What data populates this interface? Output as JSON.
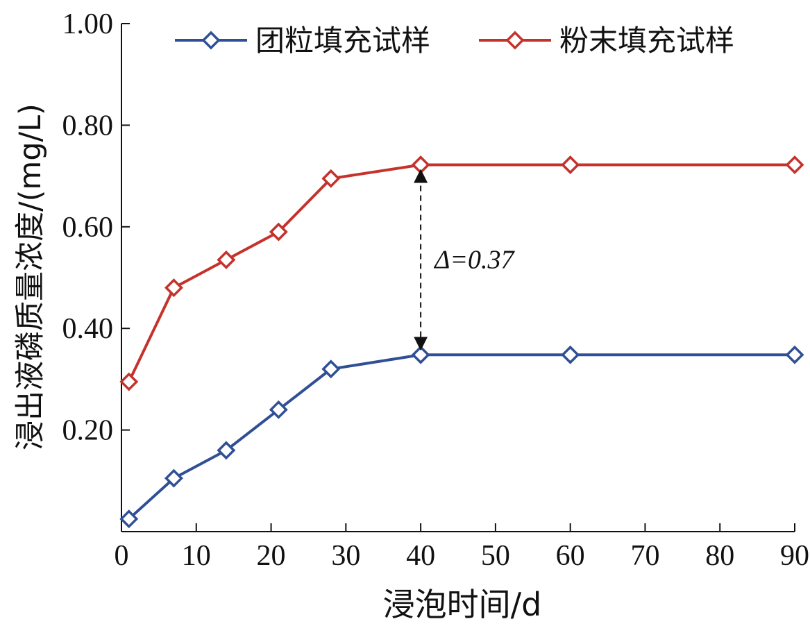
{
  "chart_data": {
    "type": "line",
    "xlabel": "浸泡时间/d",
    "ylabel": "浸出液磷质量浓度/(mg/L)",
    "x_ticks": [
      "0",
      "10",
      "20",
      "30",
      "40",
      "50",
      "60",
      "70",
      "80",
      "90"
    ],
    "y_ticks": [
      "0.20",
      "0.40",
      "0.60",
      "0.80",
      "1.00"
    ],
    "ylim": [
      0.0,
      1.0
    ],
    "x": [
      1,
      7,
      14,
      21,
      28,
      40,
      60,
      90
    ],
    "series": [
      {
        "name": "团粒填充试样",
        "color": "#2f4f96",
        "marker": "diamond-open",
        "values": [
          0.025,
          0.105,
          0.16,
          0.24,
          0.32,
          0.348,
          0.348,
          0.348
        ]
      },
      {
        "name": "粉末填充试样",
        "color": "#c5322b",
        "marker": "diamond-open",
        "values": [
          0.295,
          0.48,
          0.535,
          0.59,
          0.695,
          0.722,
          0.722,
          0.722
        ]
      }
    ],
    "annotation": {
      "text": "Δ=0.37",
      "at_x": 40,
      "from_y": 0.348,
      "to_y": 0.722
    },
    "legend_position": "top",
    "grid": false
  }
}
